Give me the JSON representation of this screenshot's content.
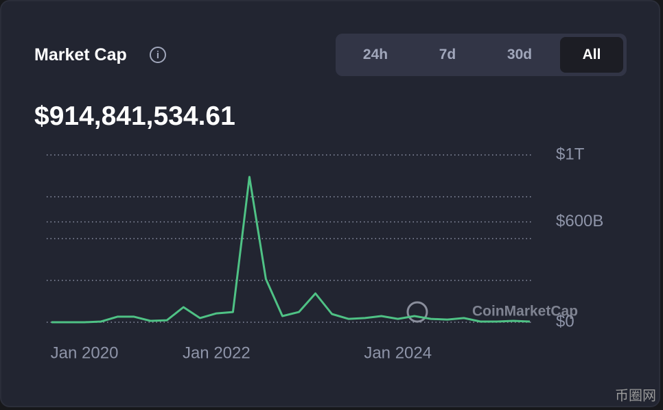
{
  "header": {
    "title": "Market Cap",
    "tabs": [
      "24h",
      "7d",
      "30d",
      "All"
    ],
    "active_tab": 3
  },
  "current_value": "$914,841,534.61",
  "watermark": "CoinMarketCap",
  "site_mark": "币圈网",
  "chart_data": {
    "type": "line",
    "categories": [
      null,
      null,
      "Jan 2020",
      null,
      null,
      null,
      null,
      null,
      null,
      null,
      "Jan 2022",
      null,
      null,
      null,
      null,
      null,
      null,
      null,
      null,
      null,
      null,
      "Jan 2024",
      null,
      null,
      null,
      null,
      null,
      null,
      null,
      null
    ],
    "series": [
      {
        "name": "Market Cap",
        "color": "#4fc285",
        "values": [
          0,
          0,
          0,
          4,
          33,
          33,
          8,
          12,
          90,
          25,
          53,
          61,
          869,
          258,
          37,
          61,
          172,
          49,
          20,
          25,
          37,
          20,
          37,
          20,
          16,
          25,
          4,
          4,
          8,
          4
        ]
      }
    ],
    "ylim": [
      0,
      1000
    ],
    "yticks": [
      {
        "value": 0,
        "label": "$0"
      },
      {
        "value": 250,
        "label": null
      },
      {
        "value": 500,
        "label": null
      },
      {
        "value": 600,
        "label": "$600B"
      },
      {
        "value": 750,
        "label": null
      },
      {
        "value": 1000,
        "label": "$1T"
      }
    ],
    "grid": true
  }
}
